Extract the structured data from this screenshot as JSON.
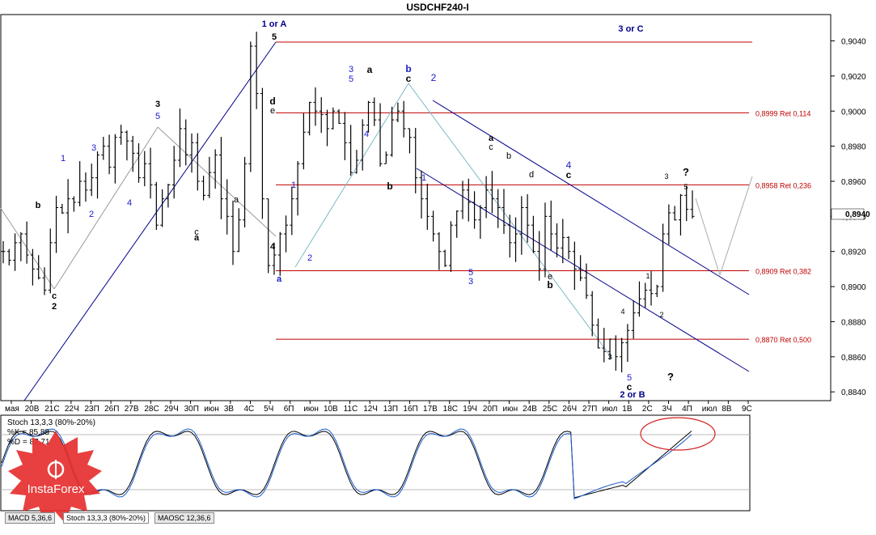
{
  "title": "USDCHF240-I",
  "price_axis": {
    "ticks": [
      "0,9040",
      "0,9020",
      "0,9000",
      "0,8980",
      "0,8960",
      "0,8940",
      "0,8920",
      "0,8900",
      "0,8880",
      "0,8860",
      "0,8840"
    ],
    "current_price": "0,8940"
  },
  "date_axis": {
    "ticks": [
      "мая",
      "20В",
      "21С",
      "22Ч",
      "23П",
      "26П",
      "27В",
      "28С",
      "29Ч",
      "30П",
      "июн",
      "3В",
      "4С",
      "5Ч",
      "6П",
      "июн",
      "10В",
      "11С",
      "12Ч",
      "13П",
      "16П",
      "17В",
      "18С",
      "19Ч",
      "20П",
      "июн",
      "24В",
      "25С",
      "26Ч",
      "27П",
      "июл",
      "1В",
      "2С",
      "3Ч",
      "4П",
      "июл",
      "8В",
      "9С"
    ]
  },
  "retracement_levels": [
    {
      "price": 0.8999,
      "label": "0,8999 Ret 0,114"
    },
    {
      "price": 0.8958,
      "label": "0,8958 Ret 0,236"
    },
    {
      "price": 0.8909,
      "label": "0,8909 Ret 0,382"
    },
    {
      "price": 0.887,
      "label": "0,8870 Ret 0,500"
    }
  ],
  "wave_labels": [
    {
      "text": "1 or A",
      "color": "#00008b"
    },
    {
      "text": "3 or C",
      "color": "#00008b"
    },
    {
      "text": "2 or B",
      "color": "#00008b"
    },
    {
      "text": "5",
      "color": "#000"
    },
    {
      "text": "?",
      "color": "#000"
    },
    {
      "text": "?",
      "color": "#000"
    },
    {
      "text": "3",
      "color": "#000"
    },
    {
      "text": "5",
      "color": "#1a1acc"
    },
    {
      "text": "1",
      "color": "#1a1acc"
    },
    {
      "text": "3",
      "color": "#1a1acc"
    },
    {
      "text": "2",
      "color": "#1a1acc"
    },
    {
      "text": "4",
      "color": "#1a1acc"
    },
    {
      "text": "c",
      "color": "#000"
    },
    {
      "text": "2",
      "color": "#000"
    },
    {
      "text": "b",
      "color": "#000"
    },
    {
      "text": "a",
      "color": "#000"
    },
    {
      "text": "c",
      "color": "#000"
    },
    {
      "text": "a",
      "color": "#000"
    },
    {
      "text": "d",
      "color": "#000"
    },
    {
      "text": "e",
      "color": "#000"
    },
    {
      "text": "4",
      "color": "#000"
    },
    {
      "text": "a",
      "color": "#1a1acc"
    },
    {
      "text": "1",
      "color": "#1a1acc"
    },
    {
      "text": "2",
      "color": "#1a1acc"
    },
    {
      "text": "3",
      "color": "#1a1acc"
    },
    {
      "text": "5",
      "color": "#1a1acc"
    },
    {
      "text": "4",
      "color": "#1a1acc"
    },
    {
      "text": "a",
      "color": "#000"
    },
    {
      "text": "b",
      "color": "#1a1acc"
    },
    {
      "text": "c",
      "color": "#000"
    },
    {
      "text": "2",
      "color": "#1a1acc"
    },
    {
      "text": "b",
      "color": "#000"
    },
    {
      "text": "1",
      "color": "#1a1acc"
    },
    {
      "text": "5",
      "color": "#1a1acc"
    },
    {
      "text": "3",
      "color": "#1a1acc"
    },
    {
      "text": "a",
      "color": "#000"
    },
    {
      "text": "c",
      "color": "#000"
    },
    {
      "text": "b",
      "color": "#000"
    },
    {
      "text": "d",
      "color": "#000"
    },
    {
      "text": "4",
      "color": "#1a1acc"
    },
    {
      "text": "c",
      "color": "#000"
    },
    {
      "text": "e",
      "color": "#000"
    },
    {
      "text": "b",
      "color": "#000"
    },
    {
      "text": "5",
      "color": "#1a1acc"
    },
    {
      "text": "c",
      "color": "#000"
    },
    {
      "text": "3",
      "color": "#000"
    },
    {
      "text": "5",
      "color": "#000"
    },
    {
      "text": "1",
      "color": "#000"
    },
    {
      "text": "2",
      "color": "#000"
    },
    {
      "text": "3",
      "color": "#000"
    },
    {
      "text": "4",
      "color": "#000"
    }
  ],
  "stochastic": {
    "header": "Stoch 13,3,3 (80%-20%)",
    "k_label": "%K = 85,88",
    "d_label": "%D = 87,71"
  },
  "tabs": [
    "MACD 5,36,6",
    "Stoch 13,3,3 (80%-20%)",
    "MAOSC 12,36,6"
  ],
  "logo_text": "InstaForex",
  "colors": {
    "retracement": "#c00000",
    "channel": "#00008b",
    "wave_blue": "#1a1acc",
    "guide": "#999999",
    "highlight_circle": "#d42020",
    "logo": "#e63030"
  },
  "chart_data": {
    "type": "ohlc",
    "symbol": "USDCHF",
    "timeframe": "H4",
    "ylim": [
      0.8835,
      0.9055
    ],
    "x": [
      "мая",
      "20В",
      "21С",
      "22Ч",
      "23П",
      "26П",
      "27В",
      "28С",
      "29Ч",
      "30П",
      "июн",
      "3В",
      "4С",
      "5Ч",
      "6П",
      "июн",
      "10В",
      "11С",
      "12Ч",
      "13П",
      "16П",
      "17В",
      "18С",
      "19Ч",
      "20П",
      "июн",
      "24В",
      "25С",
      "26Ч",
      "27П",
      "июл",
      "1В",
      "2С",
      "3Ч",
      "4П",
      "июл",
      "8В",
      "9С"
    ],
    "close_path": [
      0.892,
      0.8915,
      0.8925,
      0.893,
      0.8918,
      0.891,
      0.8905,
      0.8898,
      0.8925,
      0.8945,
      0.8942,
      0.895,
      0.8948,
      0.896,
      0.8955,
      0.8962,
      0.8975,
      0.898,
      0.8968,
      0.8985,
      0.8988,
      0.8983,
      0.8976,
      0.8962,
      0.897,
      0.8958,
      0.8935,
      0.895,
      0.8958,
      0.8972,
      0.899,
      0.8975,
      0.8982,
      0.896,
      0.8952,
      0.8965,
      0.8975,
      0.895,
      0.894,
      0.892,
      0.8938,
      0.897,
      0.9037,
      0.901,
      0.895,
      0.8912,
      0.8918,
      0.893,
      0.8935,
      0.895,
      0.897,
      0.8988,
      0.9005,
      0.9,
      0.8998,
      0.899,
      0.9,
      0.8993,
      0.8982,
      0.8965,
      0.8972,
      0.8992,
      0.9005,
      0.8995,
      0.897,
      0.8975,
      0.8995,
      0.9,
      0.899,
      0.8985,
      0.8962,
      0.895,
      0.894,
      0.893,
      0.892,
      0.8912,
      0.8935,
      0.8943,
      0.8955,
      0.8948,
      0.8938,
      0.8945,
      0.8955,
      0.895,
      0.8945,
      0.8935,
      0.8925,
      0.893,
      0.8945,
      0.8935,
      0.892,
      0.891,
      0.894,
      0.893,
      0.8922,
      0.8928,
      0.892,
      0.891,
      0.8905,
      0.8895,
      0.8878,
      0.8865,
      0.8863,
      0.887,
      0.886,
      0.8868,
      0.8875,
      0.8885,
      0.8893,
      0.8898,
      0.8896,
      0.89,
      0.893,
      0.8942,
      0.8938,
      0.8952,
      0.8944,
      0.894
    ],
    "retracements": [
      {
        "price": 0.8999,
        "ratio": "0,114"
      },
      {
        "price": 0.8958,
        "ratio": "0,236"
      },
      {
        "price": 0.8909,
        "ratio": "0,382"
      },
      {
        "price": 0.887,
        "ratio": "0,500"
      }
    ],
    "stochastic": {
      "k": 85.88,
      "d": 87.71,
      "levels": [
        80,
        20
      ]
    }
  }
}
